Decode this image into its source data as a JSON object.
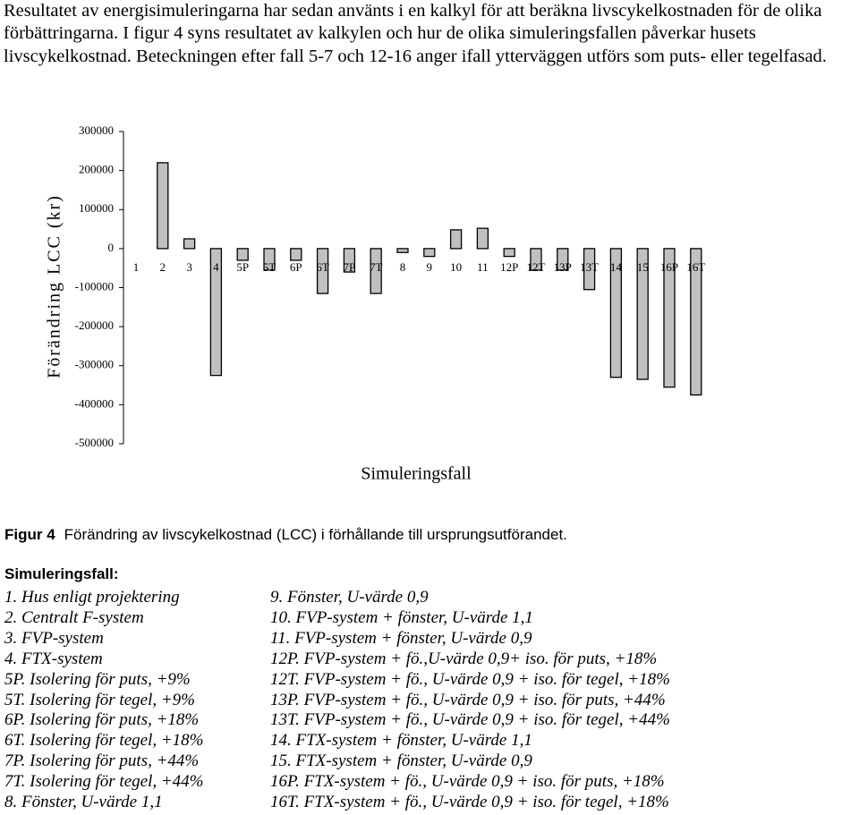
{
  "paragraph": "Resultatet av energisimuleringarna har sedan använts i en kalkyl för att beräkna livscykelkostnaden för de olika förbättringarna. I figur 4 syns resultatet av kalkylen och hur de olika simuleringsfallen påverkar husets livscykelkostnad. Beteckningen efter fall 5-7 och 12-16 anger ifall ytterväggen utförs som puts- eller tegelfasad.",
  "chart_data": {
    "type": "bar",
    "y_label": "Förändring LCC (kr)",
    "x_label": "Simuleringsfall",
    "categories": [
      "1",
      "2",
      "3",
      "4",
      "5P",
      "5T",
      "6P",
      "6T",
      "7P",
      "7T",
      "8",
      "9",
      "10",
      "11",
      "12P",
      "12T",
      "13P",
      "13T",
      "14",
      "15",
      "16P",
      "16T"
    ],
    "values": [
      0,
      220000,
      25000,
      -325000,
      -30000,
      -55000,
      -30000,
      -115000,
      -60000,
      -115000,
      -10000,
      -20000,
      48000,
      52000,
      -20000,
      -55000,
      -55000,
      -105000,
      -330000,
      -335000,
      -355000,
      -375000
    ],
    "color": "#c0c0c0",
    "ylim": [
      -500000,
      300000
    ],
    "yticks": [
      -500000,
      -400000,
      -300000,
      -200000,
      -100000,
      0,
      100000,
      200000,
      300000
    ],
    "grid": false
  },
  "caption": {
    "label": "Figur 4",
    "text": "Förändring av livscykelkostnad (LCC) i förhållande till ursprungsutförandet."
  },
  "legend": {
    "title": "Simuleringsfall:",
    "items": [
      "1. Hus enligt projektering",
      "2. Centralt F-system",
      "3. FVP-system",
      "4. FTX-system",
      "5P. Isolering för puts, +9%",
      "5T. Isolering för tegel, +9%",
      "6P. Isolering för puts, +18%",
      "6T. Isolering för tegel, +18%",
      "7P. Isolering för puts, +44%",
      "7T. Isolering för tegel, +44%",
      "8. Fönster, U-värde 1,1",
      "9. Fönster, U-värde 0,9",
      "10. FVP-system + fönster, U-värde 1,1",
      "11. FVP-system + fönster, U-värde 0,9",
      "12P. FVP-system + fö.,U-värde 0,9+ iso. för puts, +18%",
      "12T. FVP-system + fö., U-värde 0,9 + iso. för tegel, +18%",
      "13P. FVP-system + fö., U-värde 0,9 + iso. för puts, +44%",
      "13T. FVP-system + fö., U-värde 0,9 + iso. för tegel, +44%",
      "14. FTX-system + fönster, U-värde 1,1",
      "15. FTX-system + fönster, U-värde 0,9",
      "16P. FTX-system + fö., U-värde 0,9 + iso. för puts, +18%",
      "16T. FTX-system + fö., U-värde 0,9 + iso. för tegel, +18%"
    ]
  }
}
